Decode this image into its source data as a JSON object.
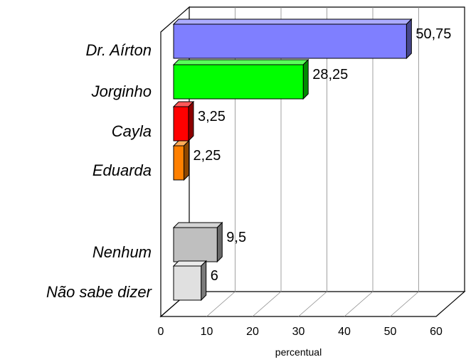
{
  "chart_data": {
    "type": "bar",
    "orientation": "horizontal",
    "three_d": true,
    "title": "",
    "xlabel": "percentual",
    "ylabel": "",
    "xlim": [
      0,
      60
    ],
    "xticks": [
      "0",
      "10",
      "20",
      "30",
      "40",
      "50",
      "60"
    ],
    "grid": true,
    "legend": "none",
    "categories": [
      "Dr. Aírton",
      "Jorginho",
      "Cayla",
      "Eduarda",
      "Nenhum",
      "Não sabe dizer"
    ],
    "values": [
      50.75,
      28.25,
      3.25,
      2.25,
      9.5,
      6
    ],
    "value_labels": [
      "50,75",
      "28,25",
      "3,25",
      "2,25",
      "9,5",
      "6"
    ],
    "colors": [
      "#7f7fff",
      "#00ff00",
      "#ff0000",
      "#ff8000",
      "#bfbfbf",
      "#e0e0e0"
    ]
  }
}
